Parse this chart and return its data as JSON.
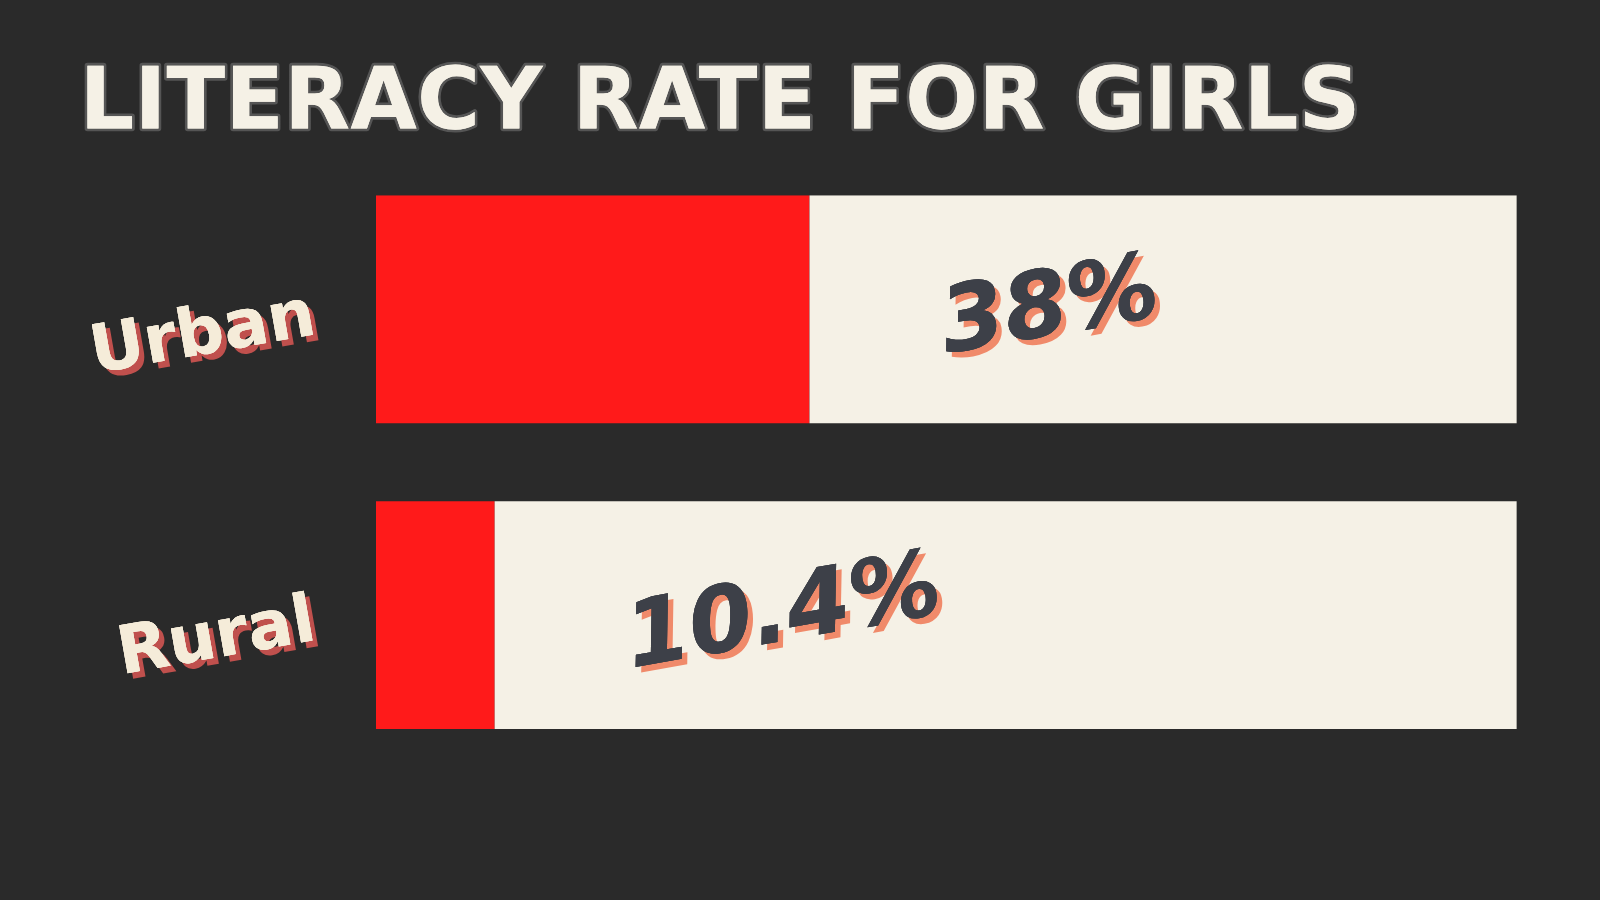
{
  "chart_data": {
    "type": "bar",
    "orientation": "horizontal",
    "stacked": true,
    "title": "LITERACY RATE FOR GIRLS",
    "categories": [
      "Urban",
      "Rural"
    ],
    "series": [
      {
        "color": "#ff1a1a",
        "values": [
          38,
          10.4
        ],
        "value_labels": [
          "38%",
          "10.4%"
        ]
      },
      {
        "color": "#f5f1e6",
        "values": [
          62,
          89.6
        ]
      }
    ],
    "xlim": [
      0,
      100
    ],
    "tick_labels": "y",
    "grid": false,
    "legend": false
  }
}
